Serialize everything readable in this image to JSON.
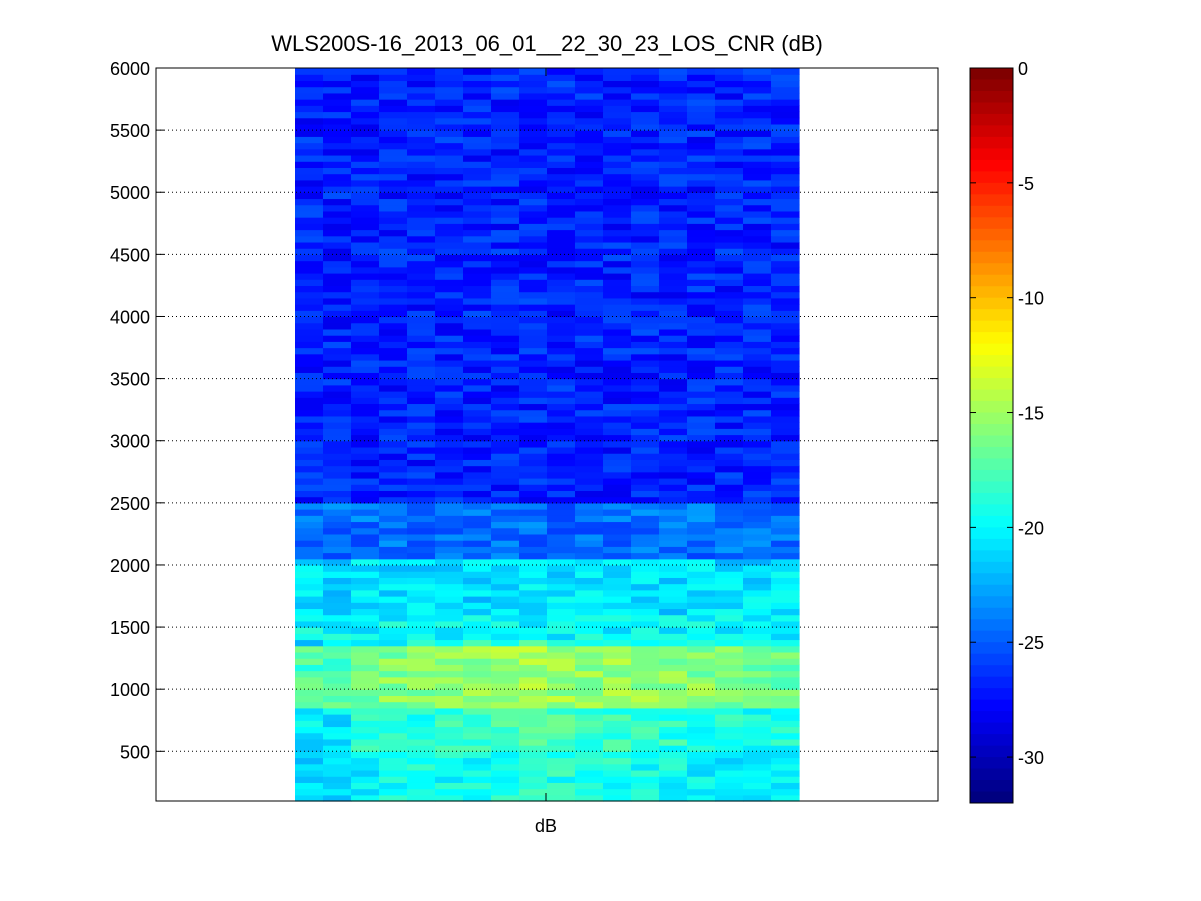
{
  "chart_data": {
    "type": "heatmap",
    "title": "WLS200S-16_2013_06_01__22_30_23_LOS_CNR (dB)",
    "xlabel": "dB",
    "ylabel": "",
    "ylim": [
      100,
      6000
    ],
    "yticks": [
      500,
      1000,
      1500,
      2000,
      2500,
      3000,
      3500,
      4000,
      4500,
      5000,
      5500,
      6000
    ],
    "ytick_labels": [
      "500",
      "1000",
      "1500",
      "2000",
      "2500",
      "3000",
      "3500",
      "4000",
      "4500",
      "5000",
      "5500",
      "6000"
    ],
    "grid": "y-dotted",
    "colormap": "jet",
    "colorbar": {
      "range": [
        -32,
        0
      ],
      "ticks": [
        0,
        -5,
        -10,
        -15,
        -20,
        -25,
        -30
      ],
      "tick_labels": [
        "0",
        "-5",
        "-10",
        "-15",
        "-20",
        "-25",
        "-30"
      ]
    },
    "columns": 18,
    "data_profile": [
      {
        "range": [
          100,
          500
        ],
        "cnr_db": -20.5
      },
      {
        "range": [
          500,
          850
        ],
        "cnr_db": -19.5
      },
      {
        "range": [
          850,
          1350
        ],
        "cnr_db": -16.5
      },
      {
        "range": [
          1350,
          1600
        ],
        "cnr_db": -20.0
      },
      {
        "range": [
          1600,
          2050
        ],
        "cnr_db": -21.0
      },
      {
        "range": [
          2050,
          2500
        ],
        "cnr_db": -24.5
      },
      {
        "range": [
          2500,
          6000
        ],
        "cnr_db": -27.0
      }
    ]
  },
  "colors": {
    "background": "#ffffff",
    "axis": "#000000",
    "grid": "#000000"
  }
}
